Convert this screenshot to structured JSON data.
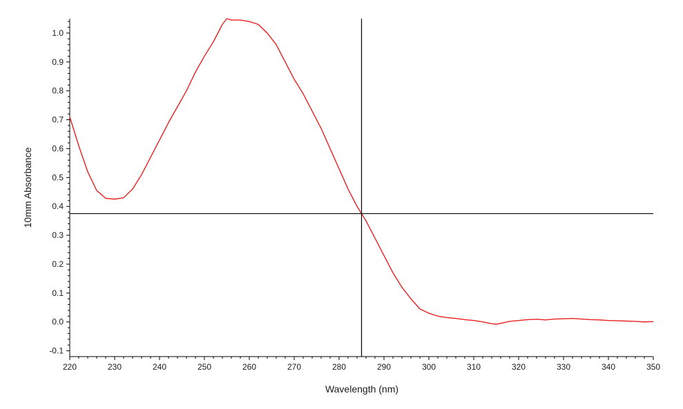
{
  "chart_data": {
    "type": "line",
    "title": "",
    "xlabel": "Wavelength (nm)",
    "ylabel": "10mm Absorbance",
    "xlim": [
      220,
      350
    ],
    "ylim": [
      -0.12,
      1.05
    ],
    "x_ticks": [
      220,
      230,
      240,
      250,
      260,
      270,
      280,
      290,
      300,
      310,
      320,
      330,
      340,
      350
    ],
    "x_tick_labels": [
      "220",
      "230",
      "240",
      "250",
      "260",
      "270",
      "280",
      "290",
      "300",
      "310",
      "320",
      "330",
      "340",
      "350"
    ],
    "y_ticks": [
      -0.1,
      0.0,
      0.1,
      0.2,
      0.3,
      0.4,
      0.5,
      0.6,
      0.7,
      0.8,
      0.9,
      1.0
    ],
    "y_tick_labels": [
      "-0.1",
      "0.0",
      "0.1",
      "0.2",
      "0.3",
      "0.4",
      "0.5",
      "0.6",
      "0.7",
      "0.8",
      "0.9",
      "1.0"
    ],
    "grid": false,
    "legend": "none",
    "series": [
      {
        "color": "#e8201f",
        "x": [
          220,
          222,
          224,
          226,
          228,
          230,
          232,
          234,
          236,
          238,
          240,
          242,
          244,
          246,
          248,
          250,
          252,
          254,
          255,
          256,
          258,
          260,
          262,
          264,
          266,
          268,
          270,
          272,
          274,
          276,
          278,
          280,
          282,
          284,
          285,
          286,
          288,
          290,
          292,
          294,
          296,
          298,
          300,
          302,
          304,
          306,
          308,
          310,
          312,
          314,
          315,
          316,
          318,
          320,
          322,
          324,
          326,
          328,
          330,
          332,
          334,
          336,
          338,
          340,
          342,
          344,
          346,
          348,
          350
        ],
        "y": [
          0.71,
          0.61,
          0.52,
          0.455,
          0.428,
          0.425,
          0.43,
          0.46,
          0.51,
          0.57,
          0.63,
          0.69,
          0.745,
          0.8,
          0.865,
          0.92,
          0.97,
          1.03,
          1.05,
          1.045,
          1.045,
          1.04,
          1.03,
          1.0,
          0.96,
          0.9,
          0.84,
          0.79,
          0.73,
          0.67,
          0.6,
          0.53,
          0.46,
          0.4,
          0.375,
          0.35,
          0.29,
          0.23,
          0.17,
          0.12,
          0.08,
          0.045,
          0.03,
          0.02,
          0.015,
          0.012,
          0.008,
          0.005,
          0.0,
          -0.006,
          -0.008,
          -0.005,
          0.002,
          0.005,
          0.008,
          0.009,
          0.007,
          0.01,
          0.011,
          0.012,
          0.01,
          0.008,
          0.007,
          0.005,
          0.004,
          0.003,
          0.002,
          0.0,
          0.001
        ]
      }
    ],
    "crosshair": {
      "x": 285,
      "y": 0.375,
      "color": "#000000"
    }
  }
}
